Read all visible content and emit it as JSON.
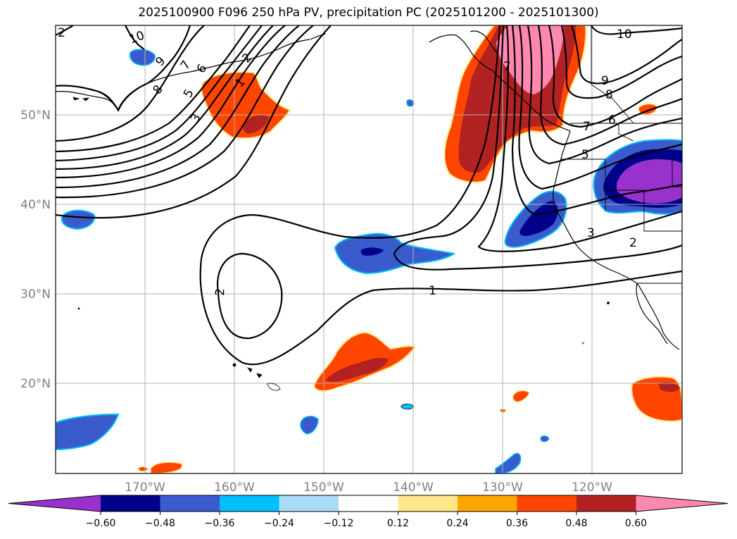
{
  "title": "2025100900 F096 250 hPa PV, precipitation PC (2025101200 - 2025101300)",
  "colors": {
    "pos_pink": "#ff88b0",
    "pos_firebrick": "#b22222",
    "pos_orangered": "#ff4500",
    "pos_orange": "#ffa500",
    "pos_khaki": "#ffe88a",
    "neg_lightblue": "#a8dcf8",
    "neg_deepsky": "#00bfff",
    "neg_royal": "#3a5bcc",
    "neg_navy": "#00008b",
    "neg_purple": "#9932cc",
    "coast": "#000000",
    "grid": "#b0b0b0"
  },
  "map": {
    "lat_labels": [
      "50°N",
      "40°N",
      "30°N",
      "20°N"
    ],
    "lon_labels": [
      "170°W",
      "160°W",
      "150°W",
      "140°W",
      "130°W",
      "120°W"
    ],
    "contour_labels": [
      "1",
      "2",
      "3",
      "5",
      "6",
      "7",
      "9",
      "10",
      "8",
      "2",
      "9",
      "10",
      "8",
      "7",
      "6",
      "5",
      "3",
      "2",
      "1",
      "2",
      "7"
    ]
  },
  "colorbar": {
    "tick_labels": [
      "−0.60",
      "−0.48",
      "−0.36",
      "−0.24",
      "−0.12",
      "0.12",
      "0.24",
      "0.36",
      "0.48",
      "0.60"
    ],
    "segment_colors": [
      "#9932cc",
      "#00008b",
      "#3a5bcc",
      "#00bfff",
      "#a8dcf8",
      "#ffffff",
      "#ffe88a",
      "#ffa500",
      "#ff4500",
      "#b22222",
      "#ff88b0"
    ]
  }
}
